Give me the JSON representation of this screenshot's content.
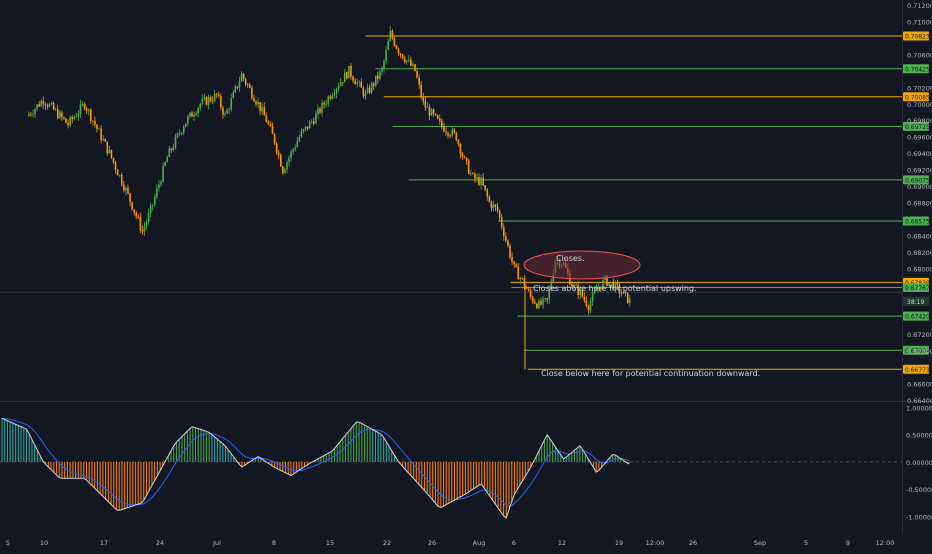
{
  "colors": {
    "background": "#131722",
    "axis_text": "#b2b5be",
    "grid": "#1e222d",
    "up_candle": "#4caf50",
    "down_candle": "#ff9800",
    "orange_level": "#f0a800",
    "green_level": "#4caf50",
    "macd_line": "#d1d4dc",
    "signal_line": "#2962ff",
    "hist_up": "#26a69a",
    "hist_green": "#43a047",
    "hist_down": "#f57c00",
    "ellipse_fill": "#6d2a35",
    "ellipse_stroke": "#ef5350"
  },
  "chart_data": [
    {
      "type": "candlestick",
      "ylim": [
        0.664,
        0.712
      ],
      "price_ticks": [
        "0.71200",
        "0.71000",
        "0.70600",
        "0.70200",
        "0.70000",
        "0.69800",
        "0.69600",
        "0.69400",
        "0.69200",
        "0.69000",
        "0.68800",
        "0.68400",
        "0.68200",
        "0.68000",
        "0.67200",
        "0.67000",
        "0.66600",
        "0.66400"
      ],
      "x_ticks": [
        "5",
        "10",
        "17",
        "24",
        "Jul",
        "8",
        "15",
        "22",
        "26",
        "Aug",
        "6",
        "12",
        "19",
        "12:00",
        "26",
        "Sep",
        "5",
        "9",
        "12:00"
      ],
      "price_path": [
        {
          "day": 3,
          "price": 0.6985
        },
        {
          "day": 5,
          "price": 0.7005
        },
        {
          "day": 8,
          "price": 0.6975
        },
        {
          "day": 10,
          "price": 0.7
        },
        {
          "day": 13,
          "price": 0.694
        },
        {
          "day": 15,
          "price": 0.6895
        },
        {
          "day": 17,
          "price": 0.6845
        },
        {
          "day": 18,
          "price": 0.687
        },
        {
          "day": 20,
          "price": 0.6935
        },
        {
          "day": 22,
          "price": 0.6975
        },
        {
          "day": 24,
          "price": 0.7
        },
        {
          "day": 26,
          "price": 0.701
        },
        {
          "day": 27,
          "price": 0.6985
        },
        {
          "day": 29,
          "price": 0.7035
        },
        {
          "day": 31,
          "price": 0.7
        },
        {
          "day": 32,
          "price": 0.698
        },
        {
          "day": 33,
          "price": 0.6955
        },
        {
          "day": 34,
          "price": 0.692
        },
        {
          "day": 36,
          "price": 0.696
        },
        {
          "day": 38,
          "price": 0.6985
        },
        {
          "day": 40,
          "price": 0.7015
        },
        {
          "day": 42,
          "price": 0.704
        },
        {
          "day": 44,
          "price": 0.701
        },
        {
          "day": 46,
          "price": 0.704
        },
        {
          "day": 47,
          "price": 0.7085
        },
        {
          "day": 48,
          "price": 0.7065
        },
        {
          "day": 50,
          "price": 0.704
        },
        {
          "day": 51,
          "price": 0.7
        },
        {
          "day": 53,
          "price": 0.6975
        },
        {
          "day": 55,
          "price": 0.696
        },
        {
          "day": 56,
          "price": 0.693
        },
        {
          "day": 57,
          "price": 0.691
        },
        {
          "day": 58,
          "price": 0.6905
        },
        {
          "day": 59,
          "price": 0.688
        },
        {
          "day": 60,
          "price": 0.687
        },
        {
          "day": 61,
          "price": 0.6835
        },
        {
          "day": 62,
          "price": 0.68
        },
        {
          "day": 63,
          "price": 0.6785
        },
        {
          "day": 64,
          "price": 0.6765
        },
        {
          "day": 65,
          "price": 0.6755
        },
        {
          "day": 66,
          "price": 0.676
        },
        {
          "day": 67,
          "price": 0.6812
        },
        {
          "day": 68,
          "price": 0.6805
        },
        {
          "day": 69,
          "price": 0.678
        },
        {
          "day": 70,
          "price": 0.677
        },
        {
          "day": 71,
          "price": 0.6755
        },
        {
          "day": 72,
          "price": 0.6775
        },
        {
          "day": 73,
          "price": 0.6785
        },
        {
          "day": 74,
          "price": 0.678
        },
        {
          "day": 75,
          "price": 0.677
        },
        {
          "day": 76,
          "price": 0.676
        }
      ],
      "levels": [
        {
          "price": 0.70823,
          "label": "0.70823",
          "kind": "orange"
        },
        {
          "price": 0.70425,
          "label": "0.70425",
          "kind": "green"
        },
        {
          "price": 0.70085,
          "label": "0.70085",
          "kind": "orange"
        },
        {
          "price": 0.69725,
          "label": "0.69725",
          "kind": "green"
        },
        {
          "price": 0.69075,
          "label": "0.69075",
          "kind": "green"
        },
        {
          "price": 0.68575,
          "label": "0.68575",
          "kind": "green"
        },
        {
          "price": 0.67829,
          "label": "0.67829",
          "kind": "orange"
        },
        {
          "price": 0.67767,
          "label": "0.67767",
          "kind": "green"
        },
        {
          "price": 0.6742,
          "label": "0.67420",
          "kind": "green"
        },
        {
          "price": 0.67004,
          "label": "0.67004",
          "kind": "green"
        },
        {
          "price": 0.66773,
          "label": "0.66773",
          "kind": "orange"
        }
      ],
      "current_price_label": "38:19",
      "annotations": {
        "closes": "Closes.",
        "upswing": "Closes above here for potential upswing.",
        "downward": "Close below here for potential continuation downward."
      }
    },
    {
      "type": "histogram+line",
      "ylim": [
        -1.25,
        1.1
      ],
      "y_ticks": [
        "1.00000",
        "0.50000",
        "0.00000",
        "-0.50000",
        "-1.00000"
      ],
      "macd_path": [
        {
          "day": 0,
          "value": 0.8
        },
        {
          "day": 3,
          "value": 0.6
        },
        {
          "day": 5,
          "value": 0.0
        },
        {
          "day": 7,
          "value": -0.3
        },
        {
          "day": 10,
          "value": -0.3
        },
        {
          "day": 12,
          "value": -0.6
        },
        {
          "day": 14,
          "value": -0.9
        },
        {
          "day": 17,
          "value": -0.75
        },
        {
          "day": 19,
          "value": -0.2
        },
        {
          "day": 21,
          "value": 0.35
        },
        {
          "day": 23,
          "value": 0.65
        },
        {
          "day": 25,
          "value": 0.55
        },
        {
          "day": 27,
          "value": 0.3
        },
        {
          "day": 29,
          "value": -0.1
        },
        {
          "day": 31,
          "value": 0.1
        },
        {
          "day": 33,
          "value": -0.1
        },
        {
          "day": 35,
          "value": -0.25
        },
        {
          "day": 37,
          "value": -0.05
        },
        {
          "day": 40,
          "value": 0.2
        },
        {
          "day": 43,
          "value": 0.75
        },
        {
          "day": 46,
          "value": 0.5
        },
        {
          "day": 48,
          "value": 0.0
        },
        {
          "day": 51,
          "value": -0.5
        },
        {
          "day": 53,
          "value": -0.85
        },
        {
          "day": 56,
          "value": -0.6
        },
        {
          "day": 58,
          "value": -0.4
        },
        {
          "day": 61,
          "value": -1.05
        },
        {
          "day": 62,
          "value": -0.6
        },
        {
          "day": 64,
          "value": -0.1
        },
        {
          "day": 66,
          "value": 0.5
        },
        {
          "day": 68,
          "value": 0.05
        },
        {
          "day": 70,
          "value": 0.3
        },
        {
          "day": 72,
          "value": -0.2
        },
        {
          "day": 74,
          "value": 0.15
        },
        {
          "day": 76,
          "value": -0.05
        }
      ]
    }
  ]
}
